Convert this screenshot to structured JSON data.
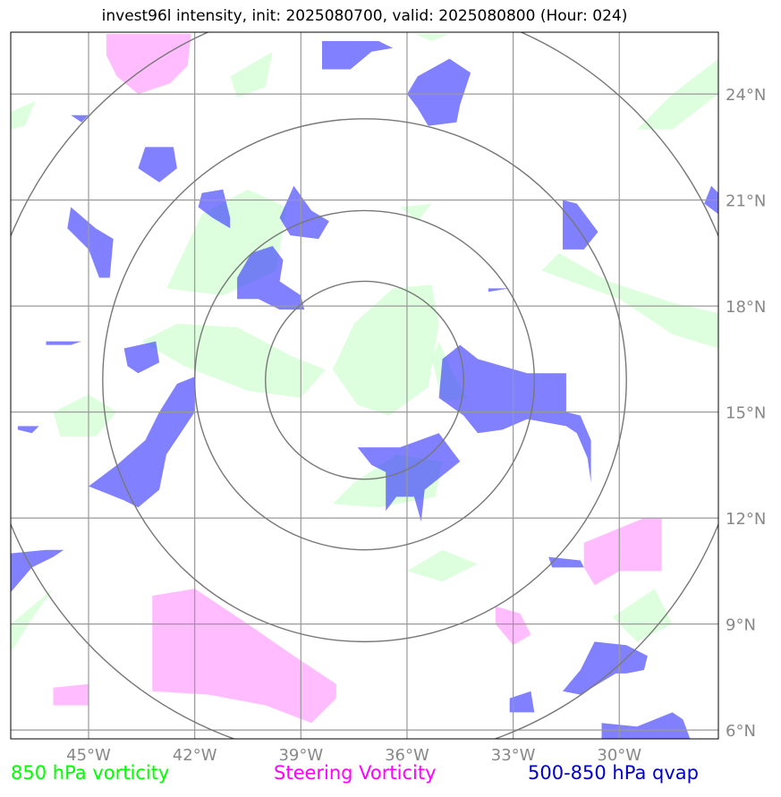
{
  "title": "invest96l intensity, init: 2025080700, valid: 2025080800 (Hour: 024)",
  "map": {
    "lon_range": [
      -47.2,
      -27.2
    ],
    "lat_range": [
      5.75,
      25.75
    ],
    "lon_ticks": [
      {
        "value": -45,
        "label": "45°W"
      },
      {
        "value": -42,
        "label": "42°W"
      },
      {
        "value": -39,
        "label": "39°W"
      },
      {
        "value": -36,
        "label": "36°W"
      },
      {
        "value": -33,
        "label": "33°W"
      },
      {
        "value": -30,
        "label": "30°W"
      }
    ],
    "lat_ticks": [
      {
        "value": 6,
        "label": "6°N"
      },
      {
        "value": 9,
        "label": "9°N"
      },
      {
        "value": 12,
        "label": "12°N"
      },
      {
        "value": 15,
        "label": "15°N"
      },
      {
        "value": 18,
        "label": "18°N"
      },
      {
        "value": 21,
        "label": "21°N"
      },
      {
        "value": 24,
        "label": "24°N"
      }
    ],
    "grid": true,
    "rings": {
      "center": [
        -37.2,
        15.9
      ],
      "radii_deg": [
        2.8,
        4.8,
        7.4,
        10.8
      ]
    }
  },
  "colors": {
    "vort850": "#ccffcc",
    "steering": "#ff99ff",
    "qvap": "#3333ff",
    "grid": "#999999",
    "ring": "#777777",
    "tick_label": "#888888"
  },
  "fields": {
    "vort850": [
      [
        [
          -37.5,
          17.5
        ],
        [
          -36.4,
          18.5
        ],
        [
          -35.3,
          18.6
        ],
        [
          -35.1,
          17.5
        ],
        [
          -35.4,
          15.7
        ],
        [
          -36.5,
          14.9
        ],
        [
          -37.4,
          15.2
        ],
        [
          -38.1,
          16.2
        ]
      ],
      [
        [
          -43.5,
          17.0
        ],
        [
          -42.3,
          16.3
        ],
        [
          -40.5,
          15.6
        ],
        [
          -39.0,
          15.4
        ],
        [
          -38.3,
          16.2
        ],
        [
          -39.3,
          16.6
        ],
        [
          -40.8,
          17.4
        ],
        [
          -42.5,
          17.5
        ]
      ],
      [
        [
          -42.8,
          18.5
        ],
        [
          -41.8,
          20.6
        ],
        [
          -40.5,
          21.3
        ],
        [
          -39.4,
          20.8
        ],
        [
          -39.7,
          19.0
        ],
        [
          -41.2,
          18.3
        ]
      ],
      [
        [
          -46.0,
          15.0
        ],
        [
          -45.0,
          15.5
        ],
        [
          -44.2,
          15.0
        ],
        [
          -44.8,
          14.3
        ],
        [
          -45.8,
          14.3
        ]
      ],
      [
        [
          -37.5,
          13.0
        ],
        [
          -36.3,
          13.8
        ],
        [
          -35.0,
          13.6
        ],
        [
          -35.2,
          12.6
        ],
        [
          -36.8,
          12.3
        ],
        [
          -38.1,
          12.4
        ]
      ],
      [
        [
          -35.1,
          17.0
        ],
        [
          -34.7,
          16.1
        ],
        [
          -34.3,
          15.4
        ],
        [
          -35.0,
          15.3
        ],
        [
          -35.3,
          16.5
        ]
      ],
      [
        [
          -36.2,
          20.8
        ],
        [
          -35.3,
          20.9
        ],
        [
          -35.7,
          20.4
        ]
      ],
      [
        [
          -32.2,
          19.0
        ],
        [
          -30.0,
          18.2
        ],
        [
          -28.5,
          17.2
        ],
        [
          -27.2,
          16.8
        ],
        [
          -27.2,
          17.8
        ],
        [
          -28.5,
          18.1
        ],
        [
          -30.3,
          18.7
        ],
        [
          -31.7,
          19.5
        ]
      ],
      [
        [
          -29.5,
          23.0
        ],
        [
          -28.5,
          24.0
        ],
        [
          -27.2,
          25.0
        ],
        [
          -27.2,
          24.0
        ],
        [
          -28.5,
          23.0
        ]
      ],
      [
        [
          -47.2,
          9.0
        ],
        [
          -46.0,
          10.0
        ],
        [
          -46.5,
          9.3
        ],
        [
          -47.2,
          8.2
        ]
      ],
      [
        [
          -36.0,
          10.5
        ],
        [
          -35.0,
          11.1
        ],
        [
          -34.0,
          10.7
        ],
        [
          -35.0,
          10.2
        ]
      ],
      [
        [
          -30.2,
          9.2
        ],
        [
          -29.0,
          10.0
        ],
        [
          -28.5,
          9.0
        ],
        [
          -29.5,
          8.5
        ]
      ],
      [
        [
          -47.2,
          23.5
        ],
        [
          -46.5,
          23.8
        ],
        [
          -46.8,
          23.1
        ],
        [
          -47.2,
          23.0
        ]
      ],
      [
        [
          -41.0,
          24.5
        ],
        [
          -39.8,
          25.2
        ],
        [
          -40.0,
          24.2
        ],
        [
          -40.8,
          23.9
        ]
      ],
      [
        [
          -35.8,
          25.7
        ],
        [
          -34.8,
          25.7
        ],
        [
          -35.3,
          25.5
        ]
      ]
    ],
    "steering": [
      [
        [
          -43.2,
          9.8
        ],
        [
          -42.0,
          10.0
        ],
        [
          -40.5,
          9.0
        ],
        [
          -39.2,
          8.1
        ],
        [
          -38.0,
          7.3
        ],
        [
          -38.0,
          6.9
        ],
        [
          -38.7,
          6.2
        ],
        [
          -40.0,
          6.7
        ],
        [
          -41.6,
          7.0
        ],
        [
          -43.2,
          7.1
        ]
      ],
      [
        [
          -44.5,
          25.7
        ],
        [
          -42.1,
          25.7
        ],
        [
          -42.2,
          24.8
        ],
        [
          -42.7,
          24.3
        ],
        [
          -43.6,
          24.0
        ],
        [
          -44.2,
          24.5
        ],
        [
          -44.5,
          25.1
        ]
      ],
      [
        [
          -31.0,
          11.3
        ],
        [
          -29.3,
          12.0
        ],
        [
          -28.8,
          12.0
        ],
        [
          -28.8,
          10.5
        ],
        [
          -30.0,
          10.5
        ],
        [
          -30.7,
          10.1
        ],
        [
          -31.0,
          10.6
        ]
      ],
      [
        [
          -33.5,
          9.5
        ],
        [
          -32.8,
          9.3
        ],
        [
          -32.5,
          8.7
        ],
        [
          -33.0,
          8.4
        ],
        [
          -33.5,
          9.0
        ]
      ],
      [
        [
          -46.0,
          7.2
        ],
        [
          -45.0,
          7.3
        ],
        [
          -45.0,
          6.7
        ],
        [
          -46.0,
          6.7
        ]
      ]
    ],
    "qvap": [
      [
        [
          -36.2,
          14.0
        ],
        [
          -35.1,
          14.4
        ],
        [
          -34.5,
          13.6
        ],
        [
          -35.0,
          13.2
        ],
        [
          -35.5,
          12.8
        ],
        [
          -35.6,
          11.9
        ],
        [
          -35.8,
          12.6
        ],
        [
          -36.3,
          12.6
        ],
        [
          -36.6,
          12.2
        ],
        [
          -36.6,
          13.3
        ],
        [
          -37.0,
          13.5
        ],
        [
          -37.4,
          14.0
        ]
      ],
      [
        [
          -35.0,
          16.5
        ],
        [
          -34.5,
          16.9
        ],
        [
          -34.0,
          16.5
        ],
        [
          -32.6,
          16.1
        ],
        [
          -31.5,
          16.1
        ],
        [
          -31.5,
          15.0
        ],
        [
          -31.1,
          14.9
        ],
        [
          -30.8,
          14.2
        ],
        [
          -30.8,
          13.0
        ],
        [
          -30.9,
          13.7
        ],
        [
          -31.2,
          14.4
        ],
        [
          -31.5,
          14.6
        ],
        [
          -32.6,
          14.8
        ],
        [
          -33.3,
          14.5
        ],
        [
          -34.0,
          14.4
        ],
        [
          -34.4,
          14.9
        ],
        [
          -35.1,
          15.4
        ]
      ],
      [
        [
          -40.4,
          19.5
        ],
        [
          -39.8,
          19.7
        ],
        [
          -39.5,
          19.3
        ],
        [
          -39.6,
          18.7
        ],
        [
          -39.0,
          18.3
        ],
        [
          -38.9,
          17.9
        ],
        [
          -39.6,
          17.9
        ],
        [
          -40.2,
          18.2
        ],
        [
          -40.8,
          18.2
        ],
        [
          -40.8,
          18.8
        ]
      ],
      [
        [
          -39.2,
          21.4
        ],
        [
          -38.7,
          20.7
        ],
        [
          -38.2,
          20.4
        ],
        [
          -38.5,
          19.9
        ],
        [
          -39.3,
          20.0
        ],
        [
          -39.6,
          20.5
        ]
      ],
      [
        [
          -43.1,
          17.0
        ],
        [
          -43.0,
          16.4
        ],
        [
          -43.6,
          16.1
        ],
        [
          -43.9,
          16.3
        ],
        [
          -44.0,
          16.8
        ]
      ],
      [
        [
          -42.5,
          15.8
        ],
        [
          -42.0,
          16.0
        ],
        [
          -42.0,
          15.0
        ],
        [
          -42.8,
          13.8
        ],
        [
          -43.0,
          12.8
        ],
        [
          -43.6,
          12.3
        ],
        [
          -44.0,
          12.5
        ],
        [
          -45.0,
          12.9
        ],
        [
          -44.2,
          13.5
        ],
        [
          -43.4,
          14.2
        ],
        [
          -43.0,
          15.0
        ]
      ],
      [
        [
          -45.5,
          20.8
        ],
        [
          -44.8,
          20.2
        ],
        [
          -44.3,
          19.9
        ],
        [
          -44.4,
          18.8
        ],
        [
          -44.7,
          18.8
        ],
        [
          -45.0,
          19.6
        ],
        [
          -45.6,
          20.2
        ]
      ],
      [
        [
          -43.4,
          22.5
        ],
        [
          -42.6,
          22.5
        ],
        [
          -42.5,
          21.9
        ],
        [
          -43.0,
          21.5
        ],
        [
          -43.6,
          21.9
        ]
      ],
      [
        [
          -41.8,
          21.2
        ],
        [
          -41.2,
          21.3
        ],
        [
          -41.0,
          20.5
        ],
        [
          -41.0,
          20.2
        ],
        [
          -41.5,
          20.5
        ],
        [
          -41.9,
          20.8
        ]
      ],
      [
        [
          -35.7,
          24.5
        ],
        [
          -34.8,
          25.0
        ],
        [
          -34.2,
          24.6
        ],
        [
          -34.5,
          23.7
        ],
        [
          -34.6,
          23.2
        ],
        [
          -35.4,
          23.1
        ],
        [
          -35.7,
          23.6
        ],
        [
          -36.0,
          24.0
        ]
      ],
      [
        [
          -38.4,
          25.5
        ],
        [
          -36.8,
          25.5
        ],
        [
          -36.4,
          25.3
        ],
        [
          -37.0,
          25.2
        ],
        [
          -37.6,
          24.7
        ],
        [
          -38.4,
          24.7
        ]
      ],
      [
        [
          -31.6,
          21.0
        ],
        [
          -31.2,
          20.9
        ],
        [
          -30.6,
          20.1
        ],
        [
          -31.0,
          19.6
        ],
        [
          -31.6,
          19.6
        ]
      ],
      [
        [
          -47.2,
          11.0
        ],
        [
          -46.2,
          11.1
        ],
        [
          -45.7,
          11.1
        ],
        [
          -46.0,
          10.9
        ],
        [
          -46.6,
          10.6
        ],
        [
          -47.2,
          9.9
        ]
      ],
      [
        [
          -30.7,
          8.5
        ],
        [
          -29.8,
          8.4
        ],
        [
          -29.2,
          8.1
        ],
        [
          -29.3,
          7.7
        ],
        [
          -29.8,
          7.6
        ],
        [
          -30.1,
          7.6
        ],
        [
          -31.1,
          7.0
        ],
        [
          -31.6,
          7.1
        ],
        [
          -31.1,
          7.7
        ]
      ],
      [
        [
          -30.5,
          5.75
        ],
        [
          -28.0,
          5.75
        ],
        [
          -28.2,
          6.3
        ],
        [
          -28.5,
          6.5
        ],
        [
          -29.5,
          6.1
        ],
        [
          -30.5,
          6.2
        ]
      ],
      [
        [
          -33.1,
          6.9
        ],
        [
          -32.5,
          7.1
        ],
        [
          -32.4,
          6.5
        ],
        [
          -33.1,
          6.5
        ]
      ],
      [
        [
          -32.0,
          10.9
        ],
        [
          -31.1,
          10.8
        ],
        [
          -31.0,
          10.6
        ],
        [
          -31.9,
          10.6
        ]
      ],
      [
        [
          -47.0,
          14.6
        ],
        [
          -46.4,
          14.6
        ],
        [
          -46.6,
          14.4
        ],
        [
          -47.0,
          14.5
        ]
      ],
      [
        [
          -33.7,
          18.5
        ],
        [
          -33.1,
          18.5
        ],
        [
          -33.7,
          18.4
        ]
      ],
      [
        [
          -45.5,
          23.4
        ],
        [
          -45.0,
          23.4
        ],
        [
          -45.2,
          23.2
        ]
      ],
      [
        [
          -46.2,
          17.0
        ],
        [
          -45.2,
          17.0
        ],
        [
          -45.5,
          16.9
        ],
        [
          -46.2,
          16.9
        ]
      ],
      [
        [
          -27.2,
          21.2
        ],
        [
          -27.4,
          21.4
        ],
        [
          -27.6,
          20.9
        ],
        [
          -27.2,
          20.6
        ]
      ]
    ]
  },
  "legend": {
    "vort850": {
      "label": "850 hPa vorticity",
      "color": "#00ff00"
    },
    "steering": {
      "label": "Steering Vorticity",
      "color": "#ff00ff"
    },
    "qvap": {
      "label": "500-850 hPa qvap",
      "color": "#0000cc"
    }
  }
}
